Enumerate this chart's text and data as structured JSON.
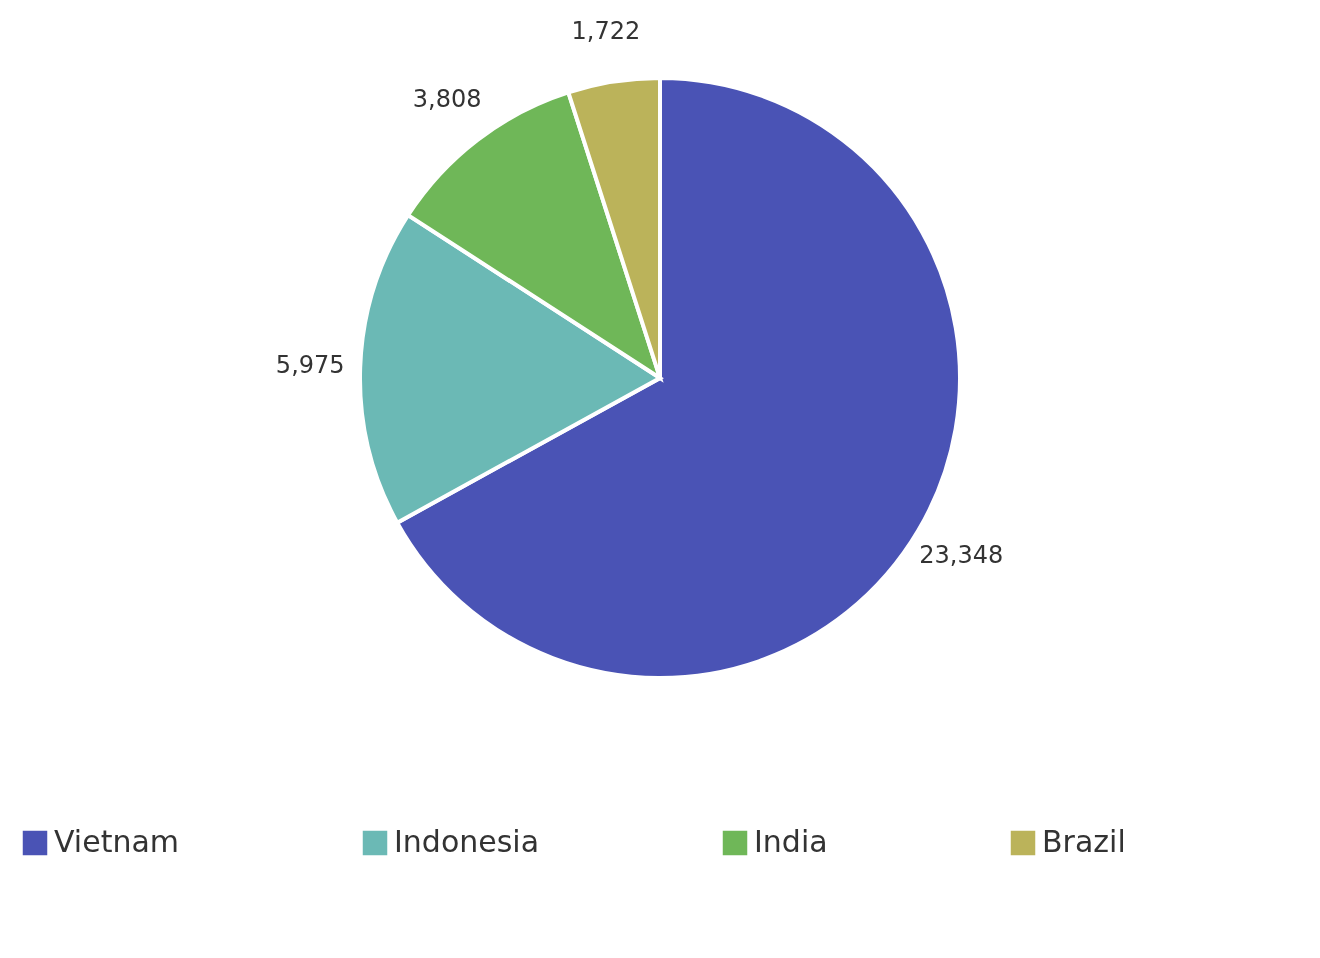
{
  "chart_data": {
    "type": "pie",
    "categories": [
      "Vietnam",
      "Indonesia",
      "India",
      "Brazil"
    ],
    "values": [
      23348,
      5975,
      3808,
      1722
    ],
    "colors": [
      "#4a53b5",
      "#6bb9b5",
      "#6fb758",
      "#bbb35a"
    ],
    "value_labels": [
      "23,348",
      "5,975",
      "3,808",
      "1,722"
    ],
    "legend": "bottom"
  }
}
